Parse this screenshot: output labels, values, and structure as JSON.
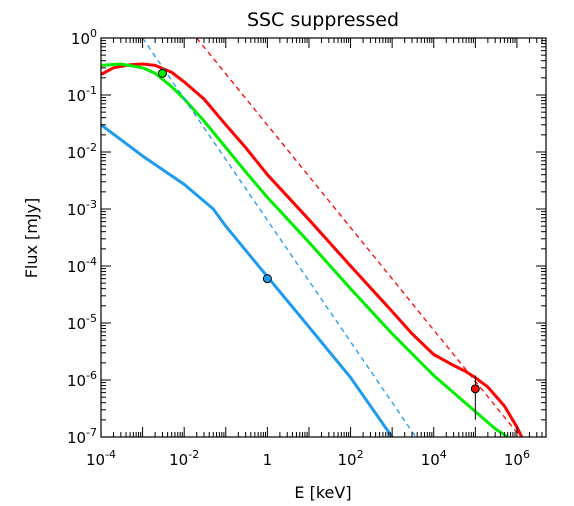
{
  "chart_data": {
    "type": "line",
    "title": "SSC suppressed",
    "xlabel": "E [keV]",
    "ylabel": "Flux [mJy]",
    "xscale": "log",
    "yscale": "log",
    "xlim": [
      0.0001,
      5000000
    ],
    "ylim": [
      1e-07,
      1
    ],
    "grid": false,
    "x_ticks": [
      {
        "value": 0.0001,
        "base": "10",
        "exp": "-4"
      },
      {
        "value": 0.01,
        "base": "10",
        "exp": "-2"
      },
      {
        "value": 1,
        "base": "1",
        "exp": ""
      },
      {
        "value": 100,
        "base": "10",
        "exp": "2"
      },
      {
        "value": 10000,
        "base": "10",
        "exp": "4"
      },
      {
        "value": 1000000,
        "base": "10",
        "exp": "6"
      }
    ],
    "y_ticks": [
      {
        "value": 1,
        "base": "10",
        "exp": "0"
      },
      {
        "value": 0.1,
        "base": "10",
        "exp": "-1"
      },
      {
        "value": 0.01,
        "base": "10",
        "exp": "-2"
      },
      {
        "value": 0.001,
        "base": "10",
        "exp": "-3"
      },
      {
        "value": 0.0001,
        "base": "10",
        "exp": "-4"
      },
      {
        "value": 1e-05,
        "base": "10",
        "exp": "-5"
      },
      {
        "value": 1e-06,
        "base": "10",
        "exp": "-6"
      },
      {
        "value": 1e-07,
        "base": "10",
        "exp": "-7"
      }
    ],
    "series": [
      {
        "color": "#ff0000",
        "dash": "solid",
        "points": [
          [
            0.0001,
            0.23
          ],
          [
            0.0002,
            0.3
          ],
          [
            0.0005,
            0.34
          ],
          [
            0.001,
            0.35
          ],
          [
            0.002,
            0.33
          ],
          [
            0.005,
            0.25
          ],
          [
            0.01,
            0.17
          ],
          [
            0.03,
            0.085
          ],
          [
            0.1,
            0.03
          ],
          [
            0.3,
            0.012
          ],
          [
            1,
            0.004
          ],
          [
            10,
            0.00065
          ],
          [
            100,
            0.0001
          ],
          [
            1000,
            1.6e-05
          ],
          [
            3000,
            6.5e-06
          ],
          [
            10000,
            2.8e-06
          ],
          [
            30000,
            1.8e-06
          ],
          [
            60000,
            1.4e-06
          ],
          [
            100000,
            1.1e-06
          ],
          [
            200000,
            7.5e-07
          ],
          [
            500000,
            3.5e-07
          ],
          [
            1000000,
            1.5e-07
          ],
          [
            1300000,
            1e-07
          ]
        ]
      },
      {
        "color": "#00ee00",
        "dash": "solid",
        "points": [
          [
            0.0001,
            0.33
          ],
          [
            0.0003,
            0.35
          ],
          [
            0.001,
            0.3
          ],
          [
            0.002,
            0.24
          ],
          [
            0.005,
            0.14
          ],
          [
            0.01,
            0.085
          ],
          [
            0.03,
            0.035
          ],
          [
            0.1,
            0.012
          ],
          [
            0.3,
            0.0045
          ],
          [
            1,
            0.0016
          ],
          [
            10,
            0.00026
          ],
          [
            100,
            4e-05
          ],
          [
            1000,
            6.5e-06
          ],
          [
            10000,
            1.2e-06
          ],
          [
            100000,
            2.8e-07
          ],
          [
            300000,
            1.4e-07
          ],
          [
            600000,
            1e-07
          ]
        ]
      },
      {
        "color": "#1e9bef",
        "dash": "solid",
        "points": [
          [
            0.0001,
            0.03
          ],
          [
            0.001,
            0.0085
          ],
          [
            0.01,
            0.0027
          ],
          [
            0.05,
            0.001
          ],
          [
            0.1,
            0.0005
          ],
          [
            1,
            6.5e-05
          ],
          [
            10,
            8.5e-06
          ],
          [
            100,
            1.1e-06
          ],
          [
            1000,
            1e-07
          ]
        ]
      },
      {
        "color": "#ff0000",
        "dash": "dashed",
        "points": [
          [
            0.02,
            1
          ],
          [
            1000000,
            1.2e-07
          ],
          [
            1300000,
            1e-07
          ]
        ]
      },
      {
        "color": "#1e9bef",
        "dash": "dashed",
        "points": [
          [
            0.001,
            1
          ],
          [
            3700,
            1e-07
          ]
        ]
      }
    ],
    "markers": [
      {
        "x": 0.003,
        "y": 0.24,
        "color": "#00ee00"
      },
      {
        "x": 1,
        "y": 6e-05,
        "color": "#1e9bef"
      },
      {
        "x": 100000,
        "y": 7e-07,
        "color": "#ff0000",
        "error_low": 2e-07,
        "error_high": 1.2e-06
      }
    ]
  }
}
